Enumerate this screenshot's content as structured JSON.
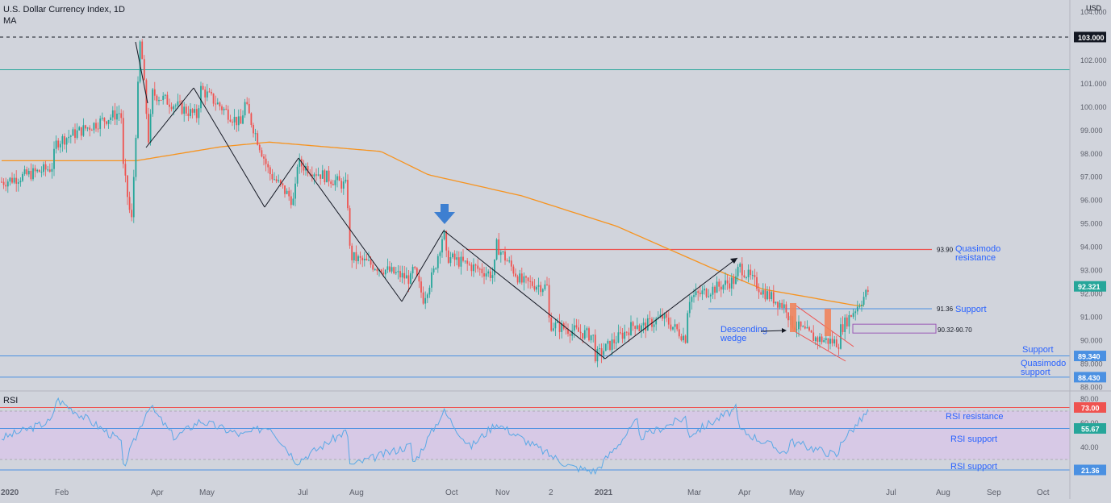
{
  "header": {
    "title": "U.S. Dollar Currency Index, 1D",
    "indicator": "MA",
    "currency": "USD"
  },
  "colors": {
    "background": "#d1d4dc",
    "candle_up": "#26a69a",
    "candle_down": "#ef5350",
    "moving_average": "#f7931e",
    "annotation_blue": "#2962ff",
    "support_line": "#4a90e2",
    "resistance_line": "#ef5350",
    "rsi_line": "#5aa9e6",
    "rsi_band": "#d8c5e8",
    "price_badge": "#26a69a",
    "arrow": "#3d7fd1"
  },
  "chart_data": [
    {
      "type": "candlestick",
      "title": "U.S. Dollar Currency Index, 1D",
      "x_tick_labels": [
        "2020",
        "Feb",
        "Apr",
        "May",
        "Jul",
        "Aug",
        "Oct",
        "Nov",
        "2",
        "2021",
        "Mar",
        "Apr",
        "May",
        "Jul",
        "Aug",
        "Sep",
        "Oct"
      ],
      "y_tick_labels": [
        "88.000",
        "89.000",
        "90.000",
        "91.000",
        "92.000",
        "93.000",
        "94.000",
        "95.000",
        "96.000",
        "97.000",
        "98.000",
        "99.000",
        "100.000",
        "101.000",
        "102.000",
        "104.000"
      ],
      "ylim": [
        87.6,
        104.6
      ],
      "grid": false,
      "price_series_close_anchors": [
        {
          "x": "Jan 2020",
          "y": 96.8
        },
        {
          "x": "Jan 2020",
          "y": 97.4
        },
        {
          "x": "Feb 2020",
          "y": 98.5
        },
        {
          "x": "Feb 2020",
          "y": 99.8
        },
        {
          "x": "Mar 2020",
          "y": 97.6
        },
        {
          "x": "Mar 2020",
          "y": 95.0
        },
        {
          "x": "Mar 2020",
          "y": 103.0
        },
        {
          "x": "Mar 2020",
          "y": 98.2
        },
        {
          "x": "Apr 2020",
          "y": 100.6
        },
        {
          "x": "Apr 2020",
          "y": 99.6
        },
        {
          "x": "May 2020",
          "y": 100.8
        },
        {
          "x": "May 2020",
          "y": 99.2
        },
        {
          "x": "Jun 2020",
          "y": 100.3
        },
        {
          "x": "Jun 2020",
          "y": 97.2
        },
        {
          "x": "Jun 2020",
          "y": 95.9
        },
        {
          "x": "Jul 2020",
          "y": 97.6
        },
        {
          "x": "Jul 2020",
          "y": 96.6
        },
        {
          "x": "Aug 2020",
          "y": 93.6
        },
        {
          "x": "Aug 2020",
          "y": 92.6
        },
        {
          "x": "Sep 2020",
          "y": 93.1
        },
        {
          "x": "Sep 2020",
          "y": 91.8
        },
        {
          "x": "Sep 2020",
          "y": 92.9
        },
        {
          "x": "Sep 2020",
          "y": 94.7
        },
        {
          "x": "Oct 2020",
          "y": 93.6
        },
        {
          "x": "Oct 2020",
          "y": 93.2
        },
        {
          "x": "Oct 2020",
          "y": 92.8
        },
        {
          "x": "Nov 2020",
          "y": 94.1
        },
        {
          "x": "Nov 2020",
          "y": 92.5
        },
        {
          "x": "Nov 2020",
          "y": 92.3
        },
        {
          "x": "Dec 2020",
          "y": 90.7
        },
        {
          "x": "Dec 2020",
          "y": 90.2
        },
        {
          "x": "Jan 2021",
          "y": 89.3
        },
        {
          "x": "Jan 2021",
          "y": 90.8
        },
        {
          "x": "Feb 2021",
          "y": 90.5
        },
        {
          "x": "Feb 2021",
          "y": 91.0
        },
        {
          "x": "Feb 2021",
          "y": 90.1
        },
        {
          "x": "Mar 2021",
          "y": 91.8
        },
        {
          "x": "Mar 2021",
          "y": 92.6
        },
        {
          "x": "Apr 2021",
          "y": 93.2
        },
        {
          "x": "Apr 2021",
          "y": 92.1
        },
        {
          "x": "Apr 2021",
          "y": 91.4
        },
        {
          "x": "May 2021",
          "y": 90.8
        },
        {
          "x": "May 2021",
          "y": 90.1
        },
        {
          "x": "May 2021",
          "y": 89.9
        },
        {
          "x": "Jun 2021",
          "y": 90.5
        },
        {
          "x": "Jun 2021",
          "y": 92.321
        }
      ],
      "moving_average_anchors": [
        {
          "x": "Jan 2020",
          "y": 97.7
        },
        {
          "x": "Mar 2020",
          "y": 97.7
        },
        {
          "x": "May 2020",
          "y": 98.3
        },
        {
          "x": "Jun 2020",
          "y": 98.5
        },
        {
          "x": "Aug 2020",
          "y": 98.1
        },
        {
          "x": "Sep 2020",
          "y": 97.1
        },
        {
          "x": "Nov 2020",
          "y": 96.2
        },
        {
          "x": "Jan 2021",
          "y": 94.9
        },
        {
          "x": "Mar 2021",
          "y": 93.1
        },
        {
          "x": "Apr 2021",
          "y": 92.2
        },
        {
          "x": "Jun 2021",
          "y": 91.5
        }
      ],
      "levels": [
        {
          "value": 103.0,
          "label": "103.000",
          "style": "dashed"
        },
        {
          "value": 101.6,
          "label": "",
          "style": "teal"
        },
        {
          "value": 93.9,
          "label": "93.90",
          "text": "Quasimodo resistance"
        },
        {
          "value": 91.36,
          "label": "91.36",
          "text": "Support"
        },
        {
          "value": 89.34,
          "label": "89.340",
          "text": "Support"
        },
        {
          "value": 88.43,
          "label": "88.430",
          "text": "Quasimodo support"
        }
      ],
      "zone": {
        "label": "90.32-90.70",
        "low": 90.32,
        "high": 90.7
      },
      "last_price": {
        "value": 92.321,
        "label": "92.321"
      },
      "annotations": [
        "Descending wedge"
      ]
    },
    {
      "type": "line",
      "title": "RSI",
      "y_tick_labels": [
        "80.00",
        "60.00",
        "40.00"
      ],
      "ylim": [
        15,
        82
      ],
      "band": [
        30,
        70
      ],
      "levels": [
        {
          "value": 73.0,
          "label": "73.00",
          "text": "RSI resistance"
        },
        {
          "value": 55.67,
          "label": "55.67",
          "text": "RSI support"
        },
        {
          "value": 21.36,
          "label": "21.36",
          "text": "RSI support"
        }
      ],
      "rsi_anchors": [
        {
          "x": "Jan 2020",
          "y": 48
        },
        {
          "x": "Jan 2020",
          "y": 62
        },
        {
          "x": "Feb 2020",
          "y": 80
        },
        {
          "x": "Feb 2020",
          "y": 45
        },
        {
          "x": "Mar 2020",
          "y": 22
        },
        {
          "x": "Mar 2020",
          "y": 75
        },
        {
          "x": "Apr 2020",
          "y": 48
        },
        {
          "x": "May 2020",
          "y": 62
        },
        {
          "x": "May 2020",
          "y": 50
        },
        {
          "x": "Jun 2020",
          "y": 58
        },
        {
          "x": "Jul 2020",
          "y": 28
        },
        {
          "x": "Jul 2020",
          "y": 54
        },
        {
          "x": "Aug 2020",
          "y": 25
        },
        {
          "x": "Aug 2020",
          "y": 42
        },
        {
          "x": "Sep 2020",
          "y": 26
        },
        {
          "x": "Sep 2020",
          "y": 70
        },
        {
          "x": "Oct 2020",
          "y": 40
        },
        {
          "x": "Nov 2020",
          "y": 60
        },
        {
          "x": "Nov 2020",
          "y": 35
        },
        {
          "x": "Dec 2020",
          "y": 24
        },
        {
          "x": "Jan 2021",
          "y": 20
        },
        {
          "x": "Jan 2021",
          "y": 62
        },
        {
          "x": "Feb 2021",
          "y": 48
        },
        {
          "x": "Feb 2021",
          "y": 65
        },
        {
          "x": "Mar 2021",
          "y": 50
        },
        {
          "x": "Mar 2021",
          "y": 72
        },
        {
          "x": "Apr 2021",
          "y": 55
        },
        {
          "x": "Apr 2021",
          "y": 35
        },
        {
          "x": "May 2021",
          "y": 45
        },
        {
          "x": "May 2021",
          "y": 33
        },
        {
          "x": "Jun 2021",
          "y": 45
        },
        {
          "x": "Jun 2021",
          "y": 58
        },
        {
          "x": "Jun 2021",
          "y": 73
        }
      ]
    }
  ]
}
